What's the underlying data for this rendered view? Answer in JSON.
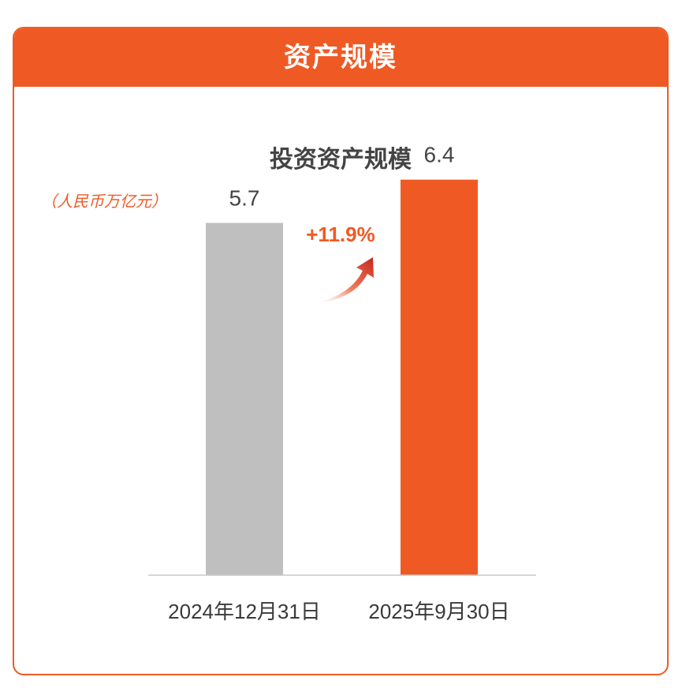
{
  "header": {
    "title": "资产规模"
  },
  "chart_data": {
    "type": "bar",
    "title": "投资资产规模",
    "unit": "（人民币万亿元）",
    "categories": [
      "2024年12月31日",
      "2025年9月30日"
    ],
    "values": [
      5.7,
      6.4
    ],
    "value_labels": [
      "5.7",
      "6.4"
    ],
    "bar_colors": [
      "#bfbfbf",
      "#ef5a24"
    ],
    "growth_annotation": "+11.9%",
    "ylim": [
      0,
      7
    ],
    "grid": false,
    "legend": "none"
  },
  "colors": {
    "accent": "#ef5a24",
    "neutral_bar": "#bfbfbf",
    "text": "#444444"
  }
}
